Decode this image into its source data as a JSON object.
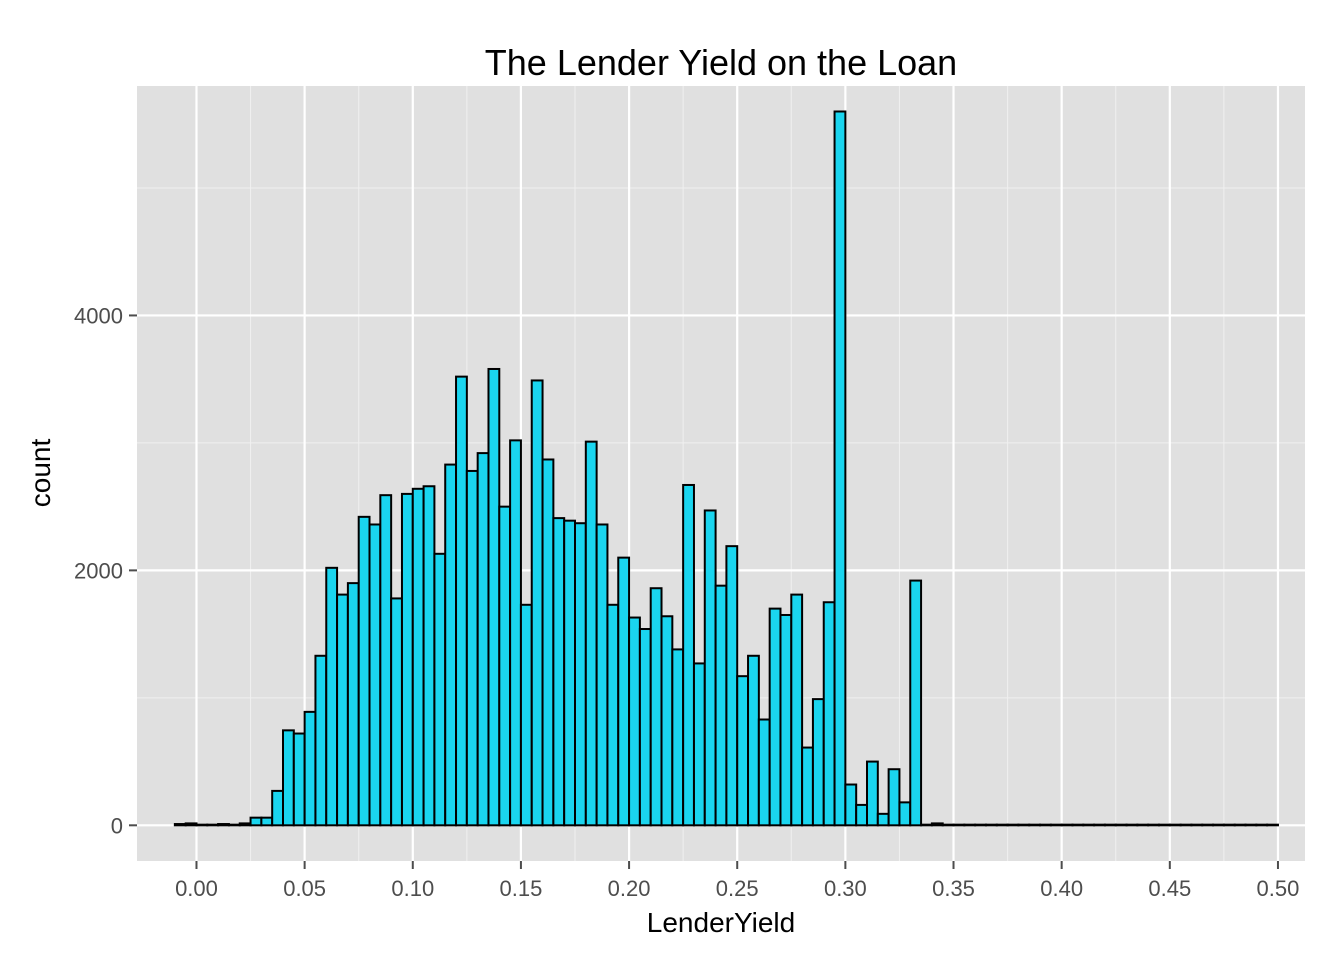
{
  "chart_data": {
    "type": "bar",
    "title": "The Lender Yield on the Loan",
    "xlabel": "LenderYield",
    "ylabel": "count",
    "xlim": [
      -0.0275,
      0.5125
    ],
    "ylim": [
      -280,
      5800
    ],
    "x_ticks": [
      0.0,
      0.05,
      0.1,
      0.15,
      0.2,
      0.25,
      0.3,
      0.35,
      0.4,
      0.45,
      0.5
    ],
    "x_tick_labels": [
      "0.00",
      "0.05",
      "0.10",
      "0.15",
      "0.20",
      "0.25",
      "0.30",
      "0.35",
      "0.40",
      "0.45",
      "0.50"
    ],
    "y_ticks": [
      0,
      2000,
      4000
    ],
    "y_tick_labels": [
      "0",
      "2000",
      "4000"
    ],
    "bin_width": 0.005,
    "first_bin_start": -0.015,
    "counts": [
      0,
      10,
      15,
      5,
      5,
      10,
      5,
      15,
      60,
      60,
      270,
      745,
      720,
      890,
      1330,
      2020,
      1810,
      1900,
      2420,
      2360,
      2590,
      1780,
      2600,
      2640,
      2660,
      2130,
      2830,
      3520,
      2780,
      2920,
      3580,
      2500,
      3020,
      1730,
      3490,
      2870,
      2410,
      2390,
      2370,
      3010,
      2360,
      1730,
      2100,
      1630,
      1540,
      1860,
      1640,
      1380,
      2670,
      1270,
      2470,
      1880,
      2190,
      1170,
      1330,
      830,
      1700,
      1650,
      1810,
      610,
      990,
      1750,
      5600,
      320,
      160,
      500,
      90,
      440,
      180,
      1920,
      5,
      15,
      5,
      5,
      5,
      5,
      5,
      5,
      5,
      5,
      5,
      5,
      5,
      5,
      5,
      5,
      5,
      5,
      5,
      5,
      5,
      5,
      5,
      5,
      5,
      5,
      5,
      5,
      5,
      5,
      5,
      5,
      5
    ],
    "bar_fill": "#1ad5ef",
    "bar_stroke": "#000000",
    "panel_background": "#e0e0e0",
    "grid": true,
    "legend": "none"
  }
}
